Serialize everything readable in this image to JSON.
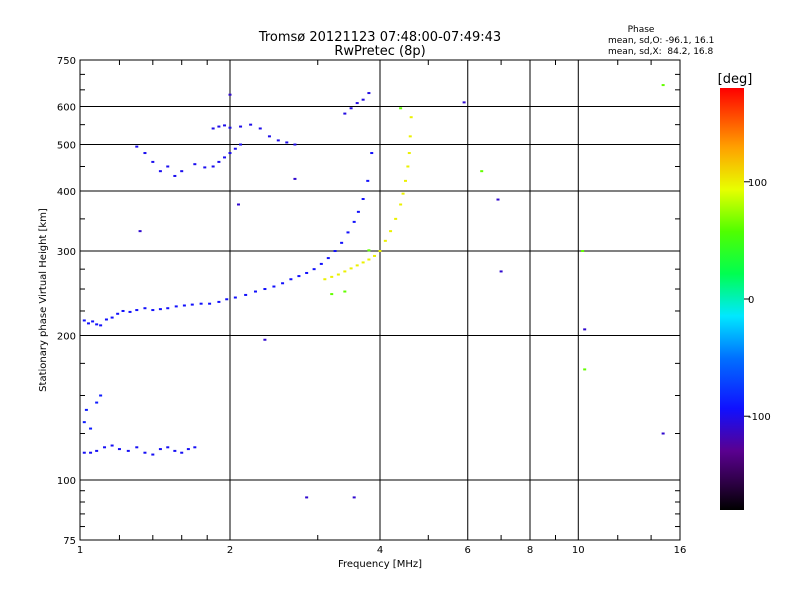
{
  "chart_data": {
    "type": "scatter",
    "title": "Tromsø 20121123 07:48:00-07:49:43",
    "subtitle": "RwPretec (8p)",
    "xlabel": "Frequency [MHz]",
    "ylabel": "Stationary phase Virtual Height [km]",
    "x_scale": "log",
    "y_scale": "log",
    "xlim": [
      1,
      16
    ],
    "ylim": [
      75,
      750
    ],
    "xticks": [
      1,
      2,
      4,
      6,
      8,
      10,
      16
    ],
    "yticks": [
      75,
      100,
      200,
      300,
      400,
      500,
      600,
      750
    ],
    "x_gridlines": [
      2,
      4,
      6,
      8,
      10
    ],
    "y_gridlines": [
      100,
      200,
      300,
      400,
      500,
      600
    ],
    "grid": true,
    "phase_info": {
      "title": "Phase",
      "line_o": "mean, sd,O: -96.1, 16.1",
      "line_x": "mean, sd,X:  84.2, 16.8"
    },
    "colorbar": {
      "label": "[deg]",
      "range": [
        -180,
        180
      ],
      "ticks": [
        {
          "value": 100,
          "label": "100"
        },
        {
          "value": 0,
          "label": "0"
        },
        {
          "value": -100,
          "label": "-100"
        }
      ],
      "colormap": "rainbow"
    },
    "series": [
      {
        "mode": "O",
        "color_value": -96,
        "x": [
          1.02,
          1.04,
          1.06,
          1.08,
          1.1,
          1.13,
          1.16,
          1.19,
          1.22,
          1.26,
          1.3,
          1.35,
          1.4,
          1.45,
          1.5,
          1.56,
          1.62,
          1.68,
          1.75,
          1.82,
          1.9,
          1.97,
          2.05,
          2.15,
          2.25,
          2.35,
          2.45,
          2.55,
          2.65,
          2.75,
          2.85,
          2.95,
          3.05,
          3.15,
          3.25,
          3.35,
          3.45,
          3.55,
          3.62,
          3.7,
          3.78,
          3.85
        ],
        "y": [
          215,
          212,
          214,
          211,
          210,
          216,
          218,
          222,
          225,
          224,
          226,
          228,
          226,
          227,
          228,
          230,
          231,
          232,
          233,
          233,
          235,
          238,
          240,
          243,
          247,
          250,
          253,
          257,
          262,
          266,
          270,
          275,
          282,
          290,
          300,
          312,
          328,
          345,
          362,
          385,
          420,
          480
        ]
      },
      {
        "mode": "X",
        "color_value": 100,
        "x": [
          3.1,
          3.2,
          3.3,
          3.4,
          3.5,
          3.6,
          3.7,
          3.8,
          3.9,
          4.0,
          4.1,
          4.2,
          4.3,
          4.4,
          4.45,
          4.5,
          4.55,
          4.58,
          4.6,
          4.62
        ],
        "y": [
          262,
          265,
          268,
          272,
          276,
          280,
          284,
          288,
          293,
          300,
          315,
          330,
          350,
          375,
          395,
          420,
          450,
          480,
          520,
          570
        ]
      },
      {
        "mode": "O",
        "color_value": -98,
        "x": [
          1.02,
          1.05,
          1.08,
          1.12,
          1.16,
          1.2,
          1.25,
          1.3,
          1.35,
          1.4,
          1.45,
          1.5,
          1.55,
          1.6,
          1.65,
          1.7
        ],
        "y": [
          114,
          114,
          115,
          117,
          118,
          116,
          115,
          117,
          114,
          113,
          116,
          117,
          115,
          114,
          116,
          117
        ]
      },
      {
        "mode": "O",
        "color_value": -90,
        "x": [
          1.02,
          1.03,
          1.05,
          1.08,
          1.1
        ],
        "y": [
          132,
          140,
          128,
          145,
          150
        ]
      },
      {
        "mode": "O",
        "color_value": -100,
        "x": [
          1.3,
          1.35,
          1.4,
          1.45,
          1.5,
          1.55,
          1.6,
          1.7,
          1.78,
          1.85,
          1.9,
          1.95,
          2.0,
          2.05,
          2.1
        ],
        "y": [
          495,
          480,
          460,
          440,
          450,
          430,
          440,
          455,
          448,
          450,
          460,
          470,
          480,
          490,
          500
        ]
      },
      {
        "mode": "O",
        "color_value": -102,
        "x": [
          1.85,
          1.9,
          1.95,
          2.0,
          2.1,
          2.2,
          2.3,
          2.4,
          2.5,
          2.6,
          2.7
        ],
        "y": [
          540,
          545,
          548,
          542,
          545,
          550,
          540,
          520,
          510,
          505,
          500
        ]
      },
      {
        "mode": "O",
        "color_value": -104,
        "x": [
          3.4,
          3.5,
          3.6,
          3.7,
          3.8
        ],
        "y": [
          580,
          595,
          610,
          620,
          640
        ]
      },
      {
        "mode": "X",
        "color_value": 60,
        "x": [
          3.2,
          3.4,
          3.8,
          4.4,
          6.4,
          10.2,
          10.3,
          14.8
        ],
        "y": [
          244,
          247,
          301,
          595,
          440,
          300,
          170,
          665
        ]
      },
      {
        "mode": "O",
        "color_value": -110,
        "x": [
          1.32,
          2.0,
          2.08,
          2.35,
          2.7,
          2.85,
          3.55,
          5.9,
          6.9,
          7.0,
          10.3,
          14.8
        ],
        "y": [
          330,
          635,
          375,
          196,
          424,
          92,
          92,
          612,
          384,
          272,
          206,
          125
        ]
      }
    ]
  }
}
